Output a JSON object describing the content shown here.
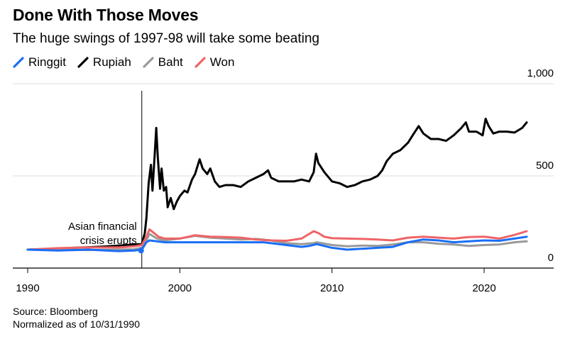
{
  "chart_data": {
    "type": "line",
    "title": "Done With Those Moves",
    "subtitle": "The huge swings of 1997-98 will take some beating",
    "xlabel": "",
    "ylabel": "",
    "xlim": [
      1990,
      2023
    ],
    "ylim": [
      0,
      1000
    ],
    "y_ticks": [
      0,
      500,
      1000
    ],
    "y_tick_labels": [
      "0",
      "500",
      "1,000"
    ],
    "x_ticks": [
      1990,
      2000,
      2010,
      2020
    ],
    "x_tick_labels": [
      "1990",
      "2000",
      "2010",
      "2020"
    ],
    "annotation": {
      "x": 1997.5,
      "lines": [
        "Asian financial",
        "crisis erupts"
      ]
    },
    "source_lines": [
      "Source: Bloomberg",
      "Normalized as of 10/31/1990"
    ],
    "series": [
      {
        "name": "Ringgit",
        "color": "#1a6ef5",
        "icon": "line-swatch-icon",
        "points": [
          [
            1990.0,
            100
          ],
          [
            1992.0,
            95
          ],
          [
            1994.0,
            100
          ],
          [
            1996.0,
            92
          ],
          [
            1997.0,
            95
          ],
          [
            1997.5,
            100
          ],
          [
            1997.8,
            140
          ],
          [
            1998.0,
            150
          ],
          [
            1998.5,
            145
          ],
          [
            1999.0,
            140
          ],
          [
            2005.5,
            140
          ],
          [
            2006.0,
            135
          ],
          [
            2007.0,
            125
          ],
          [
            2008.0,
            115
          ],
          [
            2008.5,
            120
          ],
          [
            2009.0,
            130
          ],
          [
            2010.0,
            110
          ],
          [
            2011.0,
            100
          ],
          [
            2012.0,
            105
          ],
          [
            2013.0,
            110
          ],
          [
            2014.0,
            115
          ],
          [
            2015.0,
            140
          ],
          [
            2016.0,
            155
          ],
          [
            2017.0,
            150
          ],
          [
            2018.0,
            140
          ],
          [
            2019.0,
            145
          ],
          [
            2020.0,
            150
          ],
          [
            2021.0,
            148
          ],
          [
            2022.0,
            160
          ],
          [
            2022.8,
            170
          ]
        ]
      },
      {
        "name": "Rupiah",
        "color": "#000000",
        "icon": "line-swatch-icon",
        "points": [
          [
            1990.0,
            100
          ],
          [
            1991.0,
            103
          ],
          [
            1992.0,
            106
          ],
          [
            1993.0,
            110
          ],
          [
            1994.0,
            113
          ],
          [
            1995.0,
            117
          ],
          [
            1996.0,
            122
          ],
          [
            1997.0,
            128
          ],
          [
            1997.5,
            130
          ],
          [
            1997.7,
            190
          ],
          [
            1997.8,
            270
          ],
          [
            1997.95,
            460
          ],
          [
            1998.1,
            560
          ],
          [
            1998.2,
            420
          ],
          [
            1998.35,
            620
          ],
          [
            1998.45,
            760
          ],
          [
            1998.55,
            600
          ],
          [
            1998.7,
            430
          ],
          [
            1998.8,
            540
          ],
          [
            1998.95,
            420
          ],
          [
            1999.1,
            440
          ],
          [
            1999.2,
            330
          ],
          [
            1999.4,
            380
          ],
          [
            1999.6,
            320
          ],
          [
            1999.8,
            360
          ],
          [
            2000.0,
            390
          ],
          [
            2000.3,
            420
          ],
          [
            2000.5,
            410
          ],
          [
            2000.8,
            480
          ],
          [
            2001.0,
            510
          ],
          [
            2001.3,
            590
          ],
          [
            2001.5,
            540
          ],
          [
            2001.8,
            510
          ],
          [
            2002.0,
            540
          ],
          [
            2002.3,
            470
          ],
          [
            2002.6,
            440
          ],
          [
            2003.0,
            450
          ],
          [
            2003.5,
            450
          ],
          [
            2004.0,
            440
          ],
          [
            2004.5,
            470
          ],
          [
            2005.0,
            490
          ],
          [
            2005.5,
            510
          ],
          [
            2005.8,
            530
          ],
          [
            2006.0,
            490
          ],
          [
            2006.5,
            470
          ],
          [
            2007.0,
            470
          ],
          [
            2007.5,
            470
          ],
          [
            2008.0,
            480
          ],
          [
            2008.5,
            470
          ],
          [
            2008.8,
            520
          ],
          [
            2008.95,
            620
          ],
          [
            2009.1,
            570
          ],
          [
            2009.5,
            520
          ],
          [
            2010.0,
            470
          ],
          [
            2010.5,
            460
          ],
          [
            2011.0,
            440
          ],
          [
            2011.5,
            450
          ],
          [
            2012.0,
            470
          ],
          [
            2012.5,
            480
          ],
          [
            2013.0,
            500
          ],
          [
            2013.3,
            530
          ],
          [
            2013.6,
            580
          ],
          [
            2014.0,
            620
          ],
          [
            2014.5,
            640
          ],
          [
            2015.0,
            680
          ],
          [
            2015.3,
            720
          ],
          [
            2015.7,
            770
          ],
          [
            2016.0,
            730
          ],
          [
            2016.5,
            700
          ],
          [
            2017.0,
            700
          ],
          [
            2017.5,
            690
          ],
          [
            2018.0,
            720
          ],
          [
            2018.5,
            760
          ],
          [
            2018.8,
            790
          ],
          [
            2019.0,
            740
          ],
          [
            2019.5,
            740
          ],
          [
            2019.9,
            720
          ],
          [
            2020.1,
            810
          ],
          [
            2020.3,
            770
          ],
          [
            2020.6,
            730
          ],
          [
            2021.0,
            740
          ],
          [
            2021.5,
            740
          ],
          [
            2022.0,
            735
          ],
          [
            2022.5,
            760
          ],
          [
            2022.8,
            790
          ]
        ]
      },
      {
        "name": "Baht",
        "color": "#9a9a9a",
        "icon": "line-swatch-icon",
        "points": [
          [
            1990.0,
            100
          ],
          [
            1992.0,
            100
          ],
          [
            1994.0,
            98
          ],
          [
            1996.0,
            100
          ],
          [
            1997.0,
            102
          ],
          [
            1997.5,
            110
          ],
          [
            1997.8,
            150
          ],
          [
            1998.0,
            185
          ],
          [
            1998.5,
            160
          ],
          [
            1999.0,
            150
          ],
          [
            2000.0,
            160
          ],
          [
            2001.0,
            175
          ],
          [
            2002.0,
            165
          ],
          [
            2003.0,
            160
          ],
          [
            2004.0,
            155
          ],
          [
            2005.0,
            158
          ],
          [
            2006.0,
            150
          ],
          [
            2007.0,
            135
          ],
          [
            2008.0,
            130
          ],
          [
            2008.8,
            135
          ],
          [
            2009.0,
            140
          ],
          [
            2010.0,
            125
          ],
          [
            2011.0,
            118
          ],
          [
            2012.0,
            122
          ],
          [
            2013.0,
            120
          ],
          [
            2014.0,
            128
          ],
          [
            2015.0,
            140
          ],
          [
            2016.0,
            140
          ],
          [
            2017.0,
            132
          ],
          [
            2018.0,
            128
          ],
          [
            2019.0,
            120
          ],
          [
            2020.0,
            125
          ],
          [
            2021.0,
            128
          ],
          [
            2022.0,
            140
          ],
          [
            2022.8,
            145
          ]
        ]
      },
      {
        "name": "Won",
        "color": "#ef6466",
        "icon": "line-swatch-icon",
        "points": [
          [
            1990.0,
            100
          ],
          [
            1992.0,
            108
          ],
          [
            1994.0,
            112
          ],
          [
            1996.0,
            112
          ],
          [
            1997.0,
            118
          ],
          [
            1997.5,
            125
          ],
          [
            1997.8,
            170
          ],
          [
            1998.0,
            210
          ],
          [
            1998.3,
            190
          ],
          [
            1998.6,
            170
          ],
          [
            1999.0,
            160
          ],
          [
            2000.0,
            160
          ],
          [
            2001.0,
            178
          ],
          [
            2002.0,
            170
          ],
          [
            2003.0,
            168
          ],
          [
            2004.0,
            165
          ],
          [
            2005.0,
            155
          ],
          [
            2006.0,
            150
          ],
          [
            2007.0,
            148
          ],
          [
            2008.0,
            160
          ],
          [
            2008.8,
            200
          ],
          [
            2009.1,
            190
          ],
          [
            2009.5,
            170
          ],
          [
            2010.0,
            162
          ],
          [
            2011.0,
            160
          ],
          [
            2012.0,
            158
          ],
          [
            2013.0,
            155
          ],
          [
            2014.0,
            150
          ],
          [
            2015.0,
            165
          ],
          [
            2016.0,
            170
          ],
          [
            2017.0,
            165
          ],
          [
            2018.0,
            160
          ],
          [
            2019.0,
            168
          ],
          [
            2020.0,
            170
          ],
          [
            2021.0,
            160
          ],
          [
            2022.0,
            180
          ],
          [
            2022.8,
            200
          ]
        ]
      }
    ]
  }
}
